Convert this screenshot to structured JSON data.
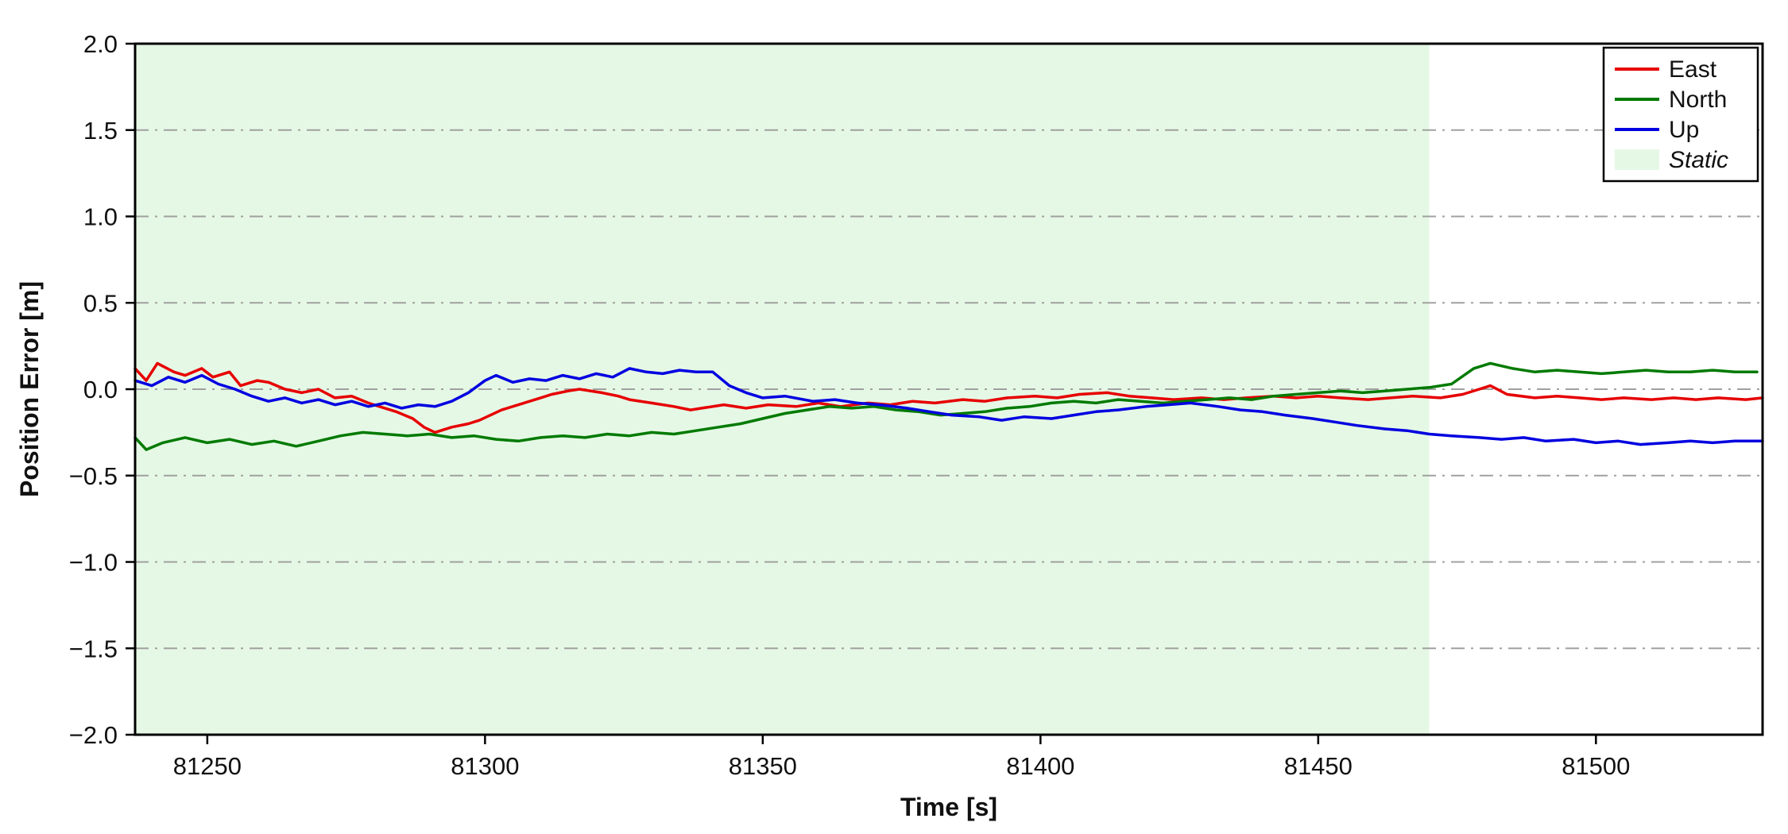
{
  "chart_data": {
    "type": "line",
    "title": "",
    "xlabel": "Time [s]",
    "ylabel": "Position Error [m]",
    "xlim": [
      81237,
      81530
    ],
    "ylim": [
      -2.0,
      2.0
    ],
    "x_ticks": [
      81250,
      81300,
      81350,
      81400,
      81450,
      81500
    ],
    "y_ticks": [
      -2.0,
      -1.5,
      -1.0,
      -0.5,
      0.0,
      0.5,
      1.0,
      1.5,
      2.0
    ],
    "grid": "horizontal dash-dot gray lines at each y tick (edges excluded)",
    "grid_color": "#a0a0a0",
    "frame_color": "#000000",
    "legend_position": "upper right",
    "regions": [
      {
        "label": "Static",
        "x_start": 81237,
        "x_end": 81470,
        "color": "#e5f8e5"
      }
    ],
    "legend": [
      {
        "label": "East",
        "color": "#e60000",
        "type": "line",
        "italic": false
      },
      {
        "label": "North",
        "color": "#007a00",
        "type": "line",
        "italic": false
      },
      {
        "label": "Up",
        "color": "#0000e0",
        "type": "line",
        "italic": false
      },
      {
        "label": "Static",
        "color": "#e5f8e5",
        "type": "patch",
        "italic": true
      }
    ],
    "series": [
      {
        "name": "East",
        "color": "#e60000",
        "points": [
          [
            81237,
            0.12
          ],
          [
            81239,
            0.05
          ],
          [
            81241,
            0.15
          ],
          [
            81244,
            0.1
          ],
          [
            81246,
            0.08
          ],
          [
            81249,
            0.12
          ],
          [
            81251,
            0.07
          ],
          [
            81254,
            0.1
          ],
          [
            81256,
            0.02
          ],
          [
            81259,
            0.05
          ],
          [
            81261,
            0.04
          ],
          [
            81264,
            0.0
          ],
          [
            81267,
            -0.02
          ],
          [
            81270,
            0.0
          ],
          [
            81273,
            -0.05
          ],
          [
            81276,
            -0.04
          ],
          [
            81279,
            -0.08
          ],
          [
            81281,
            -0.1
          ],
          [
            81284,
            -0.13
          ],
          [
            81287,
            -0.17
          ],
          [
            81289,
            -0.22
          ],
          [
            81291,
            -0.25
          ],
          [
            81294,
            -0.22
          ],
          [
            81297,
            -0.2
          ],
          [
            81299,
            -0.18
          ],
          [
            81303,
            -0.12
          ],
          [
            81307,
            -0.08
          ],
          [
            81310,
            -0.05
          ],
          [
            81312,
            -0.03
          ],
          [
            81315,
            -0.01
          ],
          [
            81317,
            0.0
          ],
          [
            81321,
            -0.02
          ],
          [
            81324,
            -0.04
          ],
          [
            81326,
            -0.06
          ],
          [
            81330,
            -0.08
          ],
          [
            81334,
            -0.1
          ],
          [
            81337,
            -0.12
          ],
          [
            81339,
            -0.11
          ],
          [
            81343,
            -0.09
          ],
          [
            81347,
            -0.11
          ],
          [
            81351,
            -0.09
          ],
          [
            81356,
            -0.1
          ],
          [
            81360,
            -0.08
          ],
          [
            81364,
            -0.1
          ],
          [
            81369,
            -0.08
          ],
          [
            81373,
            -0.09
          ],
          [
            81377,
            -0.07
          ],
          [
            81381,
            -0.08
          ],
          [
            81386,
            -0.06
          ],
          [
            81390,
            -0.07
          ],
          [
            81394,
            -0.05
          ],
          [
            81399,
            -0.04
          ],
          [
            81403,
            -0.05
          ],
          [
            81407,
            -0.03
          ],
          [
            81412,
            -0.02
          ],
          [
            81416,
            -0.04
          ],
          [
            81420,
            -0.05
          ],
          [
            81424,
            -0.06
          ],
          [
            81429,
            -0.05
          ],
          [
            81433,
            -0.06
          ],
          [
            81437,
            -0.05
          ],
          [
            81442,
            -0.04
          ],
          [
            81446,
            -0.05
          ],
          [
            81450,
            -0.04
          ],
          [
            81454,
            -0.05
          ],
          [
            81459,
            -0.06
          ],
          [
            81463,
            -0.05
          ],
          [
            81467,
            -0.04
          ],
          [
            81472,
            -0.05
          ],
          [
            81476,
            -0.03
          ],
          [
            81479,
            0.0
          ],
          [
            81481,
            0.02
          ],
          [
            81484,
            -0.03
          ],
          [
            81489,
            -0.05
          ],
          [
            81493,
            -0.04
          ],
          [
            81497,
            -0.05
          ],
          [
            81501,
            -0.06
          ],
          [
            81505,
            -0.05
          ],
          [
            81510,
            -0.06
          ],
          [
            81514,
            -0.05
          ],
          [
            81518,
            -0.06
          ],
          [
            81522,
            -0.05
          ],
          [
            81527,
            -0.06
          ],
          [
            81530,
            -0.05
          ]
        ]
      },
      {
        "name": "North",
        "color": "#007a00",
        "points": [
          [
            81237,
            -0.28
          ],
          [
            81239,
            -0.35
          ],
          [
            81242,
            -0.31
          ],
          [
            81246,
            -0.28
          ],
          [
            81250,
            -0.31
          ],
          [
            81254,
            -0.29
          ],
          [
            81258,
            -0.32
          ],
          [
            81262,
            -0.3
          ],
          [
            81266,
            -0.33
          ],
          [
            81270,
            -0.3
          ],
          [
            81274,
            -0.27
          ],
          [
            81278,
            -0.25
          ],
          [
            81282,
            -0.26
          ],
          [
            81286,
            -0.27
          ],
          [
            81290,
            -0.26
          ],
          [
            81294,
            -0.28
          ],
          [
            81298,
            -0.27
          ],
          [
            81302,
            -0.29
          ],
          [
            81306,
            -0.3
          ],
          [
            81310,
            -0.28
          ],
          [
            81314,
            -0.27
          ],
          [
            81318,
            -0.28
          ],
          [
            81322,
            -0.26
          ],
          [
            81326,
            -0.27
          ],
          [
            81330,
            -0.25
          ],
          [
            81334,
            -0.26
          ],
          [
            81338,
            -0.24
          ],
          [
            81342,
            -0.22
          ],
          [
            81346,
            -0.2
          ],
          [
            81350,
            -0.17
          ],
          [
            81354,
            -0.14
          ],
          [
            81358,
            -0.12
          ],
          [
            81362,
            -0.1
          ],
          [
            81366,
            -0.11
          ],
          [
            81370,
            -0.1
          ],
          [
            81374,
            -0.12
          ],
          [
            81378,
            -0.13
          ],
          [
            81382,
            -0.15
          ],
          [
            81386,
            -0.14
          ],
          [
            81390,
            -0.13
          ],
          [
            81394,
            -0.11
          ],
          [
            81398,
            -0.1
          ],
          [
            81402,
            -0.08
          ],
          [
            81406,
            -0.07
          ],
          [
            81410,
            -0.08
          ],
          [
            81414,
            -0.06
          ],
          [
            81418,
            -0.07
          ],
          [
            81422,
            -0.08
          ],
          [
            81426,
            -0.07
          ],
          [
            81430,
            -0.06
          ],
          [
            81434,
            -0.05
          ],
          [
            81438,
            -0.06
          ],
          [
            81442,
            -0.04
          ],
          [
            81446,
            -0.03
          ],
          [
            81450,
            -0.02
          ],
          [
            81454,
            -0.01
          ],
          [
            81458,
            -0.02
          ],
          [
            81462,
            -0.01
          ],
          [
            81466,
            0.0
          ],
          [
            81470,
            0.01
          ],
          [
            81474,
            0.03
          ],
          [
            81478,
            0.12
          ],
          [
            81481,
            0.15
          ],
          [
            81485,
            0.12
          ],
          [
            81489,
            0.1
          ],
          [
            81493,
            0.11
          ],
          [
            81497,
            0.1
          ],
          [
            81501,
            0.09
          ],
          [
            81505,
            0.1
          ],
          [
            81509,
            0.11
          ],
          [
            81513,
            0.1
          ],
          [
            81517,
            0.1
          ],
          [
            81521,
            0.11
          ],
          [
            81525,
            0.1
          ],
          [
            81529,
            0.1
          ]
        ]
      },
      {
        "name": "Up",
        "color": "#0000e0",
        "points": [
          [
            81237,
            0.05
          ],
          [
            81240,
            0.02
          ],
          [
            81243,
            0.07
          ],
          [
            81246,
            0.04
          ],
          [
            81249,
            0.08
          ],
          [
            81252,
            0.03
          ],
          [
            81255,
            0.0
          ],
          [
            81258,
            -0.04
          ],
          [
            81261,
            -0.07
          ],
          [
            81264,
            -0.05
          ],
          [
            81267,
            -0.08
          ],
          [
            81270,
            -0.06
          ],
          [
            81273,
            -0.09
          ],
          [
            81276,
            -0.07
          ],
          [
            81279,
            -0.1
          ],
          [
            81282,
            -0.08
          ],
          [
            81285,
            -0.11
          ],
          [
            81288,
            -0.09
          ],
          [
            81291,
            -0.1
          ],
          [
            81294,
            -0.07
          ],
          [
            81297,
            -0.02
          ],
          [
            81300,
            0.05
          ],
          [
            81302,
            0.08
          ],
          [
            81305,
            0.04
          ],
          [
            81308,
            0.06
          ],
          [
            81311,
            0.05
          ],
          [
            81314,
            0.08
          ],
          [
            81317,
            0.06
          ],
          [
            81320,
            0.09
          ],
          [
            81323,
            0.07
          ],
          [
            81326,
            0.12
          ],
          [
            81329,
            0.1
          ],
          [
            81332,
            0.09
          ],
          [
            81335,
            0.11
          ],
          [
            81338,
            0.1
          ],
          [
            81341,
            0.1
          ],
          [
            81344,
            0.02
          ],
          [
            81347,
            -0.02
          ],
          [
            81350,
            -0.05
          ],
          [
            81354,
            -0.04
          ],
          [
            81359,
            -0.07
          ],
          [
            81363,
            -0.06
          ],
          [
            81367,
            -0.08
          ],
          [
            81371,
            -0.09
          ],
          [
            81376,
            -0.11
          ],
          [
            81380,
            -0.13
          ],
          [
            81384,
            -0.15
          ],
          [
            81389,
            -0.16
          ],
          [
            81393,
            -0.18
          ],
          [
            81397,
            -0.16
          ],
          [
            81402,
            -0.17
          ],
          [
            81406,
            -0.15
          ],
          [
            81410,
            -0.13
          ],
          [
            81414,
            -0.12
          ],
          [
            81419,
            -0.1
          ],
          [
            81423,
            -0.09
          ],
          [
            81427,
            -0.08
          ],
          [
            81432,
            -0.1
          ],
          [
            81436,
            -0.12
          ],
          [
            81440,
            -0.13
          ],
          [
            81444,
            -0.15
          ],
          [
            81449,
            -0.17
          ],
          [
            81453,
            -0.19
          ],
          [
            81457,
            -0.21
          ],
          [
            81462,
            -0.23
          ],
          [
            81466,
            -0.24
          ],
          [
            81470,
            -0.26
          ],
          [
            81474,
            -0.27
          ],
          [
            81479,
            -0.28
          ],
          [
            81483,
            -0.29
          ],
          [
            81487,
            -0.28
          ],
          [
            81491,
            -0.3
          ],
          [
            81496,
            -0.29
          ],
          [
            81500,
            -0.31
          ],
          [
            81504,
            -0.3
          ],
          [
            81508,
            -0.32
          ],
          [
            81513,
            -0.31
          ],
          [
            81517,
            -0.3
          ],
          [
            81521,
            -0.31
          ],
          [
            81525,
            -0.3
          ],
          [
            81530,
            -0.3
          ]
        ]
      }
    ]
  }
}
